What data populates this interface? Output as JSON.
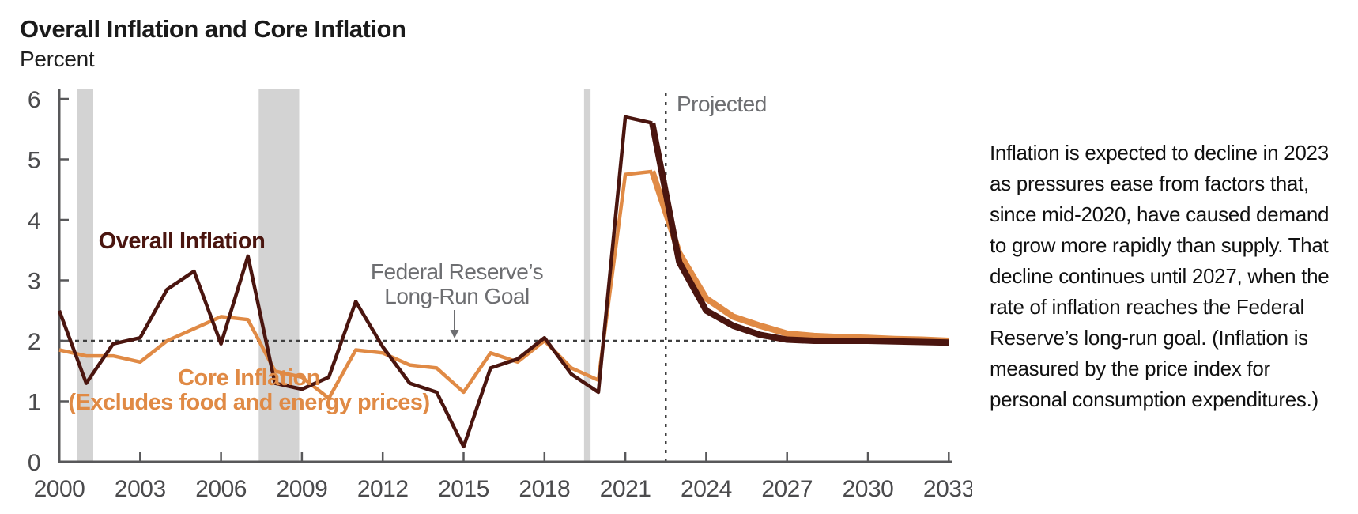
{
  "header": {
    "title": "Overall Inflation and Core Inflation",
    "subtitle": "Percent"
  },
  "commentary": {
    "text": "Inflation is expected to decline in 2023 as pressures ease from factors that, since mid-2020, have caused demand to grow more rapidly than supply. That decline continues until 2027, when the rate of inflation reaches the Federal Reserve’s long-run goal. (Inflation is measured by the price index for personal consumption expenditures.)"
  },
  "chart_data": {
    "type": "line",
    "title": "Overall Inflation and Core Inflation",
    "ylabel": "Percent",
    "xlim": [
      2000,
      2033.2
    ],
    "ylim": [
      0,
      6
    ],
    "grid": false,
    "x": [
      2000,
      2001,
      2002,
      2003,
      2004,
      2005,
      2006,
      2007,
      2008,
      2009,
      2010,
      2011,
      2012,
      2013,
      2014,
      2015,
      2016,
      2017,
      2018,
      2019,
      2020,
      2021,
      2022,
      2023,
      2024,
      2025,
      2026,
      2027,
      2028,
      2029,
      2030,
      2031,
      2032,
      2033
    ],
    "series": [
      {
        "name": "overall-inflation",
        "label": "Overall Inflation",
        "color": "#4A150F",
        "values": [
          2.5,
          1.3,
          1.95,
          2.05,
          2.85,
          3.15,
          1.95,
          3.4,
          1.3,
          1.2,
          1.4,
          2.65,
          1.9,
          1.3,
          1.15,
          0.25,
          1.55,
          1.7,
          2.05,
          1.45,
          1.15,
          5.7,
          5.6,
          3.3,
          2.5,
          2.25,
          2.1,
          2.02,
          2.0,
          2.0,
          2.0,
          1.99,
          1.98,
          1.97
        ]
      },
      {
        "name": "core-inflation",
        "label": "Core Inflation",
        "label_line2": "(Excludes food and energy prices)",
        "color": "#E08A45",
        "values": [
          1.85,
          1.75,
          1.75,
          1.65,
          2.0,
          2.2,
          2.4,
          2.35,
          1.5,
          1.4,
          1.05,
          1.85,
          1.8,
          1.6,
          1.55,
          1.15,
          1.8,
          1.65,
          2.0,
          1.55,
          1.35,
          4.75,
          4.8,
          3.45,
          2.7,
          2.4,
          2.25,
          2.12,
          2.08,
          2.06,
          2.05,
          2.03,
          2.02,
          2.0
        ]
      }
    ],
    "x_ticks": [
      2000,
      2003,
      2006,
      2009,
      2012,
      2015,
      2018,
      2021,
      2024,
      2027,
      2030,
      2033
    ],
    "y_ticks": [
      0,
      1,
      2,
      3,
      4,
      5,
      6
    ],
    "projection": {
      "label": "Projected",
      "last_actual_year": 2022,
      "divider_year": 2022.5
    },
    "goal_annotation": {
      "line1": "Federal Reserve’s",
      "line2": "Long-Run Goal",
      "value": 2
    },
    "recession_bands": [
      {
        "start": 2000.65,
        "end": 2001.26
      },
      {
        "start": 2007.4,
        "end": 2008.9
      },
      {
        "start": 2019.47,
        "end": 2019.71
      }
    ],
    "colors": {
      "overall_line": "#4A150F",
      "core_line": "#E08A45",
      "recession_band": "#d3d3d3",
      "dotted_line": "#3f3f3f",
      "axis": "#58585a",
      "annotation_gray": "#6d6e71"
    }
  }
}
